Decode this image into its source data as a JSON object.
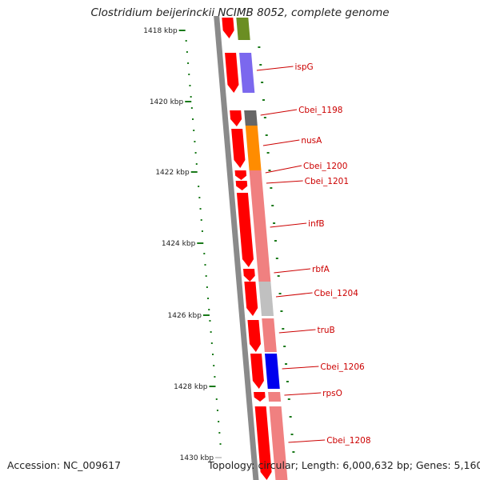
{
  "title": "Clostridium beijerinckii NCIMB 8052, complete genome",
  "footer": {
    "accession": "Accession: NC_009617",
    "summary": "Topology: circular; Length: 6,000,632 bp; Genes: 5,160"
  },
  "colors": {
    "backbone": "#8a8a8a",
    "cds": "#ff0000",
    "tick": "#1a7a1a",
    "label": "#cc0000",
    "callout": "#cc0000"
  },
  "kbp_labels": [
    "1418 kbp",
    "1420 kbp",
    "1422 kbp",
    "1424 kbp",
    "1426 kbp",
    "1428 kbp",
    "1430 kbp"
  ],
  "genes": [
    {
      "label": "ispG",
      "color": "#7b68ee"
    },
    {
      "label": "Cbei_1198",
      "color": "#666666"
    },
    {
      "label": "nusA",
      "color": "#ff8c00"
    },
    {
      "label": "Cbei_1200",
      "color": "#f08080"
    },
    {
      "label": "Cbei_1201",
      "color": "#f08080"
    },
    {
      "label": "infB",
      "color": "#f08080"
    },
    {
      "label": "rbfA",
      "color": "#f08080"
    },
    {
      "label": "Cbei_1204",
      "color": "#c0c0c0"
    },
    {
      "label": "truB",
      "color": "#f08080"
    },
    {
      "label": "Cbei_1206",
      "color": "#0000ee"
    },
    {
      "label": "rpsO",
      "color": "#f08080"
    },
    {
      "label": "Cbei_1208",
      "color": "#f08080"
    }
  ],
  "unlabeled_top_block": {
    "color": "#6b8e23"
  }
}
